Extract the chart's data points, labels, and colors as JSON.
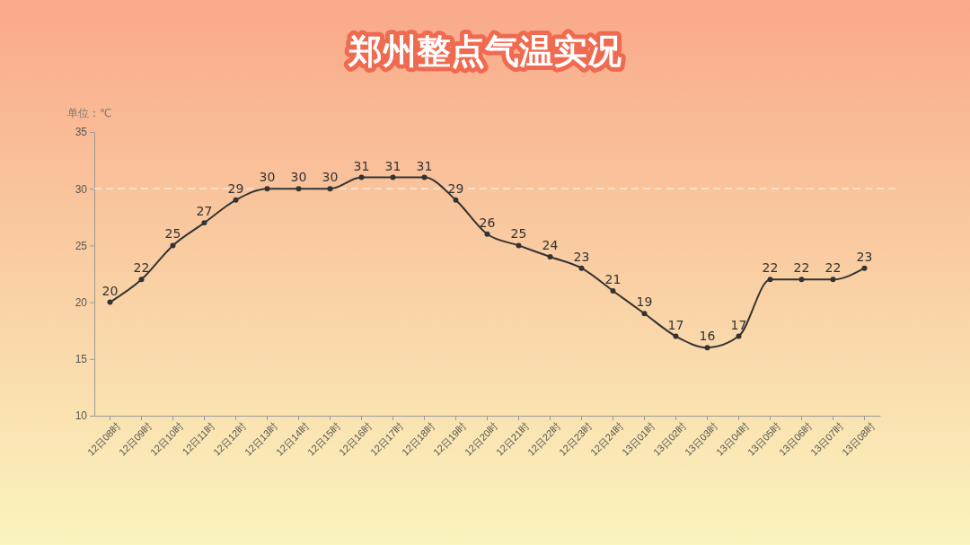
{
  "chart_data": {
    "type": "line",
    "title": "郑州整点气温实况",
    "ylabel": "单位：℃",
    "categories": [
      "12日08时",
      "12日09时",
      "12日10时",
      "12日11时",
      "12日12时",
      "12日13时",
      "12日14时",
      "12日15时",
      "12日16时",
      "12日17时",
      "12日18时",
      "12日19时",
      "12日20时",
      "12日21时",
      "12日22时",
      "12日23时",
      "12日24时",
      "13日01时",
      "13日02时",
      "13日03时",
      "13日04时",
      "13日05时",
      "13日06时",
      "13日07时",
      "13日08时"
    ],
    "series": [
      {
        "color": "#333333",
        "values": [
          20,
          22,
          25,
          27,
          29,
          30,
          30,
          30,
          31,
          31,
          31,
          29,
          26,
          25,
          24,
          23,
          21,
          19,
          17,
          16,
          17,
          22,
          22,
          22,
          23
        ]
      }
    ],
    "ylim": [
      10,
      35
    ],
    "yticks": [
      10,
      15,
      20,
      25,
      30,
      35
    ],
    "ref_lines": [
      {
        "axis": "y",
        "value": 30,
        "color": "#f8f2ea",
        "line_style": "dashed"
      }
    ],
    "data_labels": true,
    "marker": "circle",
    "line_style": "solid",
    "grid": false
  }
}
